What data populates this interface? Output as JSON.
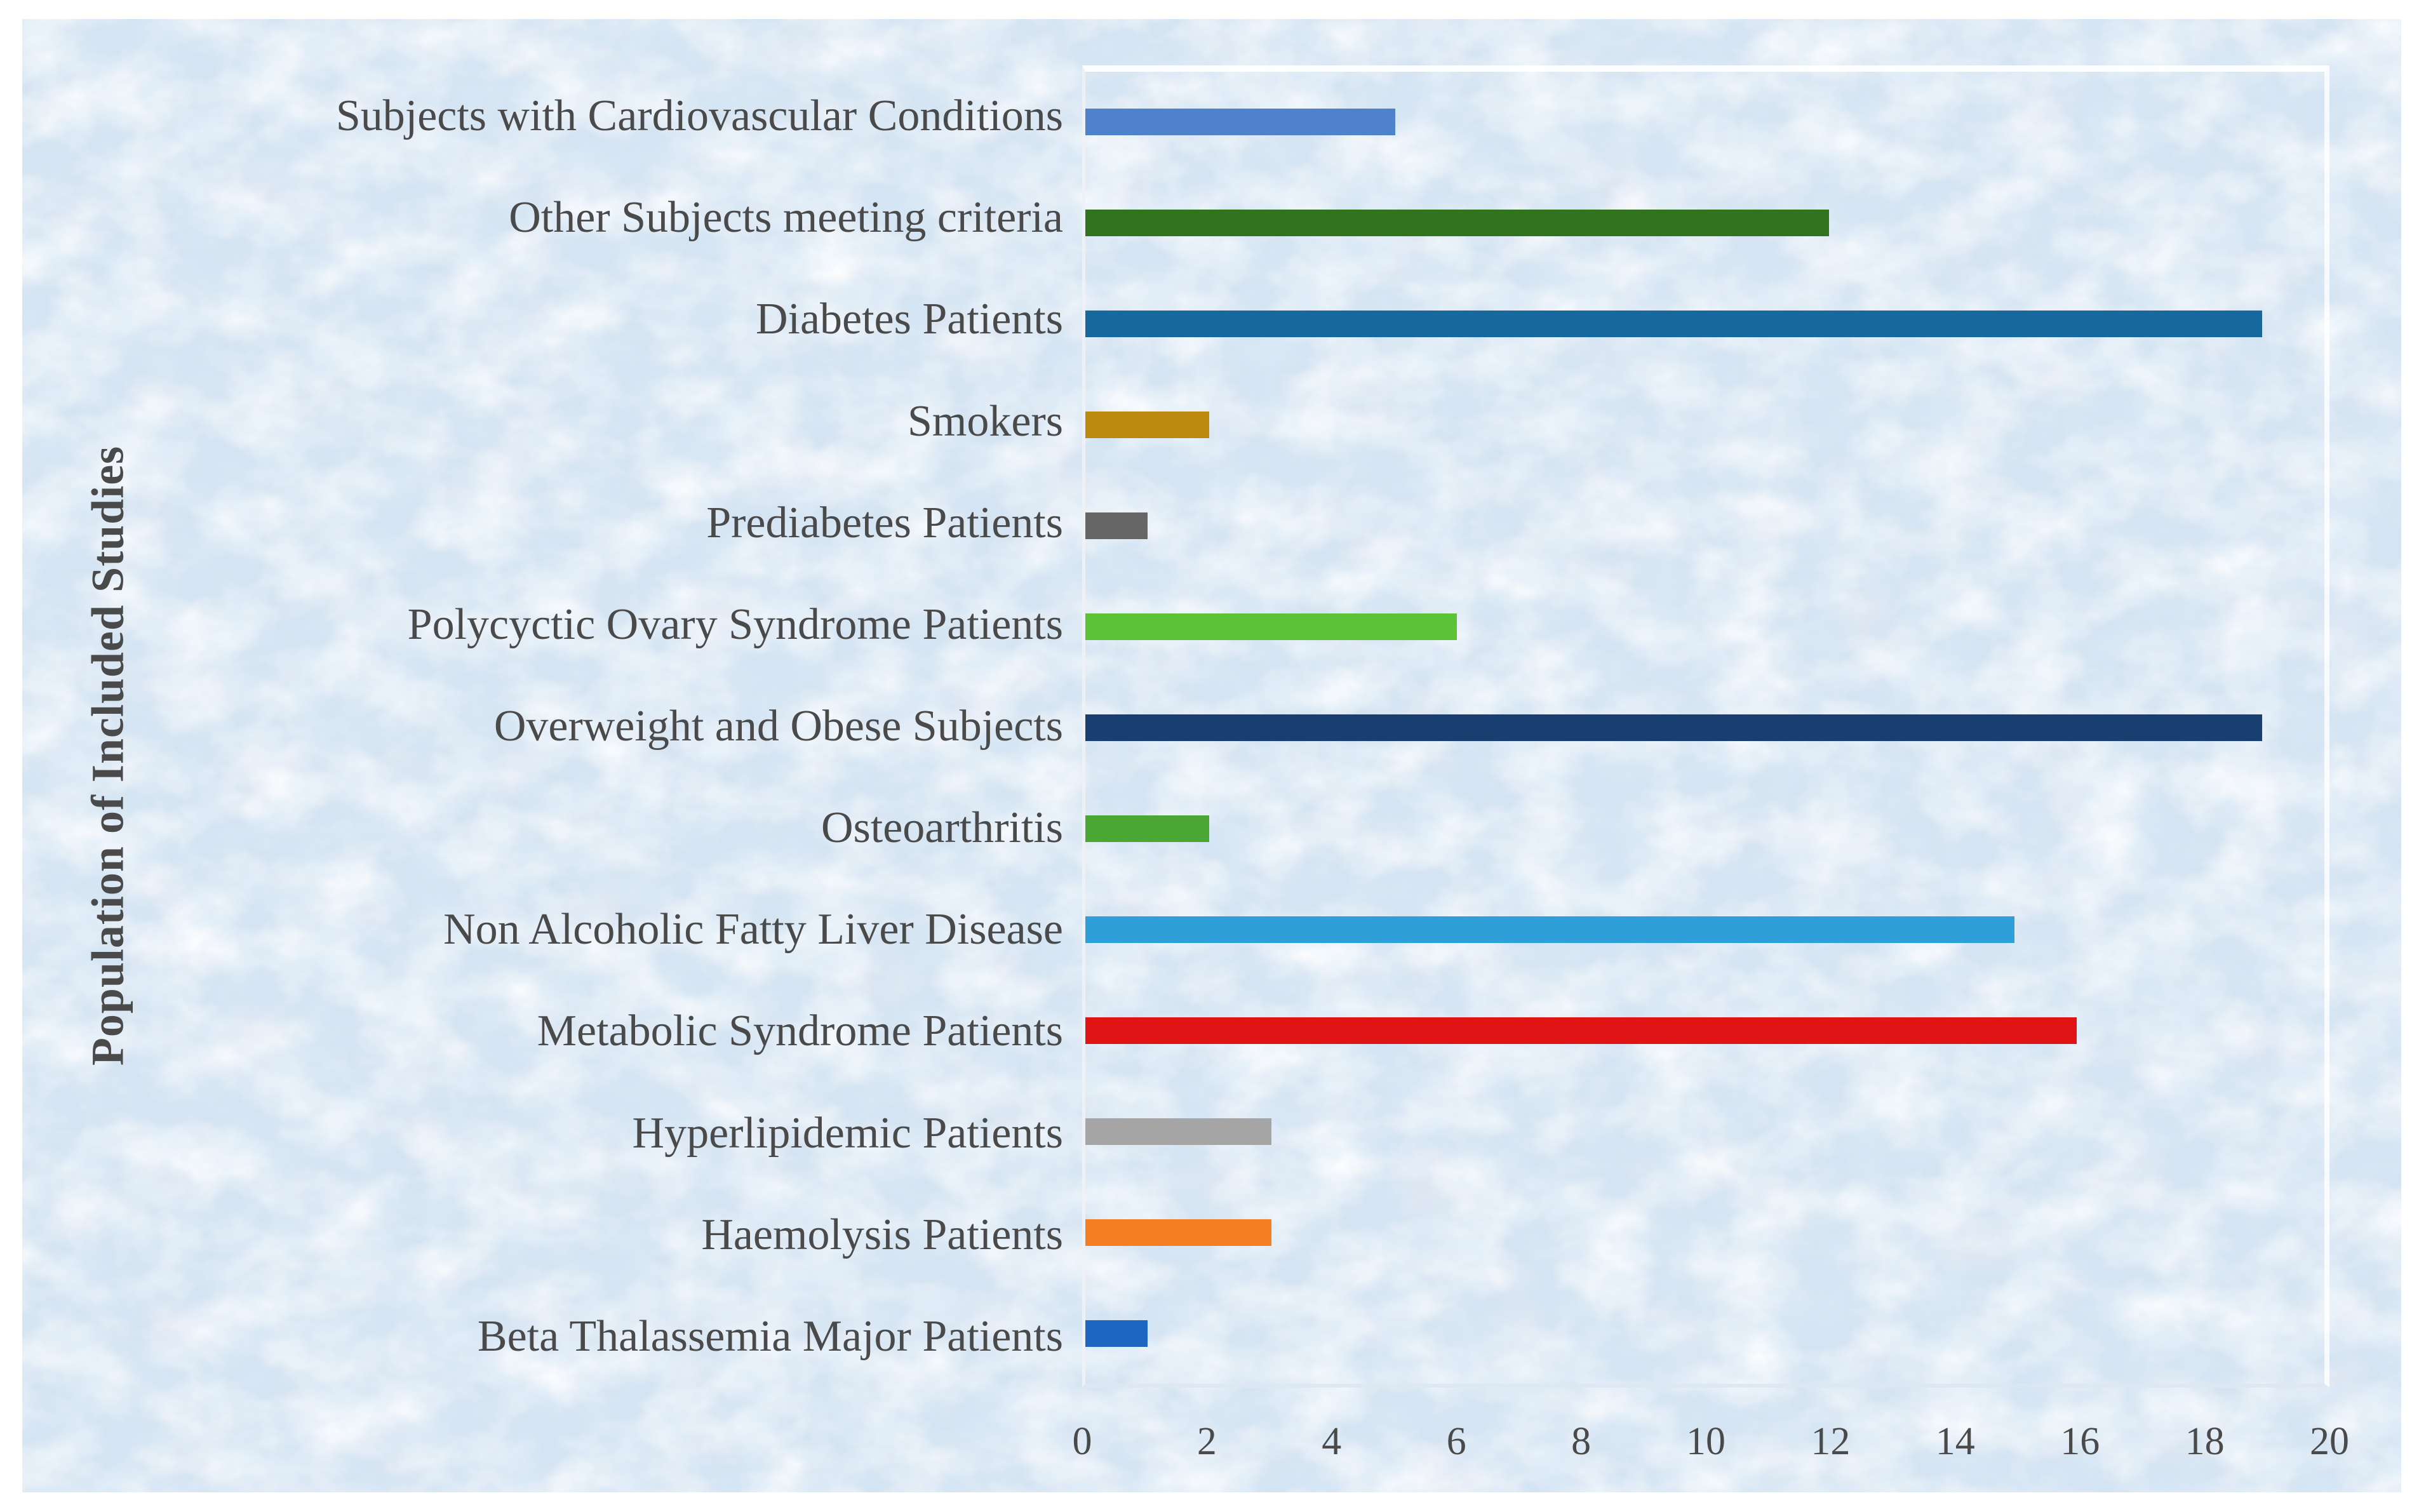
{
  "figure": {
    "background_color": "#d5e4f2",
    "frame_color": "#ffffff",
    "text_color": "#4a4a4a"
  },
  "chart_data": {
    "type": "bar",
    "orientation": "horizontal",
    "title": "",
    "xlabel": "",
    "ylabel": "Population of Included Studies",
    "xlim": [
      0,
      20
    ],
    "x_ticks": [
      "0",
      "2",
      "4",
      "6",
      "8",
      "10",
      "12",
      "14",
      "16",
      "18",
      "20"
    ],
    "grid": false,
    "legend": false,
    "categories": [
      "Subjects with Cardiovascular Conditions",
      "Other Subjects meeting criteria",
      "Diabetes Patients",
      "Smokers",
      "Prediabetes Patients",
      "Polycyctic Ovary Syndrome Patients",
      "Overweight and Obese Subjects",
      "Osteoarthritis",
      "Non Alcoholic Fatty Liver Disease",
      "Metabolic Syndrome Patients",
      "Hyperlipidemic Patients",
      "Haemolysis Patients",
      "Beta Thalassemia Major Patients"
    ],
    "values": [
      5,
      12,
      19,
      2,
      1,
      6,
      19,
      2,
      15,
      16,
      3,
      3,
      1
    ],
    "bar_colors": [
      "#4e82cb",
      "#31731f",
      "#17689e",
      "#bd8a10",
      "#666666",
      "#5cc236",
      "#193f70",
      "#4ca633",
      "#2e9fd9",
      "#e01414",
      "#a5a5a5",
      "#f57e22",
      "#1f66c1"
    ]
  }
}
